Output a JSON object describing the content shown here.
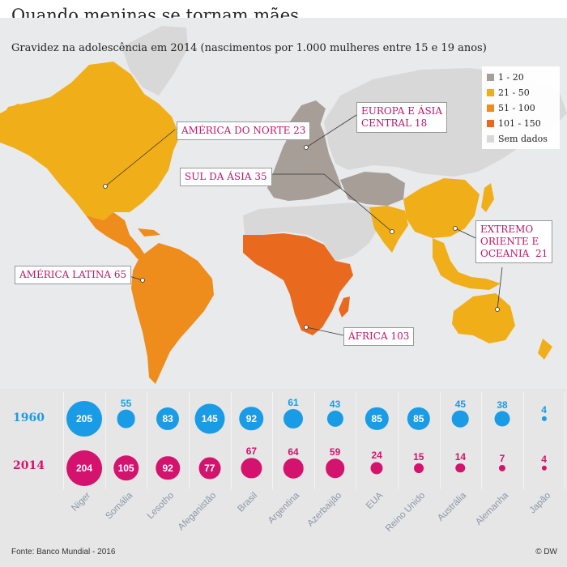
{
  "title": "Quando meninas se tornam mães",
  "subtitle": "Gravidez na adolescência em 2014 (nascimentos por 1.000 mulheres entre 15 e 19 anos)",
  "legend": [
    {
      "label": "1 - 20",
      "color": "#a79e97"
    },
    {
      "label": "21 - 50",
      "color": "#f0ae19"
    },
    {
      "label": "51 - 100",
      "color": "#ee8c1c"
    },
    {
      "label": "101 - 150",
      "color": "#e96a1f"
    },
    {
      "label": "Sem dados",
      "color": "#d8d8d8"
    }
  ],
  "regions": [
    {
      "label": "AMÉRICA DO NORTE 23"
    },
    {
      "label": "EUROPA E ÁSIA\nCENTRAL 18"
    },
    {
      "label": "SUL DA ÁSIA 35"
    },
    {
      "label": "EXTREMO\nORIENTE E\nOCEANIA  21"
    },
    {
      "label": "AMÉRICA LATINA 65"
    },
    {
      "label": "ÁFRICA 103"
    }
  ],
  "colors": {
    "year1960": "#1a9be6",
    "year2014": "#d4136f",
    "ocean": "#e9eaec"
  },
  "chart_data": {
    "type": "bubble",
    "rows": [
      {
        "year": "1960",
        "values": [
          205,
          55,
          83,
          145,
          92,
          61,
          43,
          85,
          85,
          45,
          38,
          4
        ]
      },
      {
        "year": "2014",
        "values": [
          204,
          105,
          92,
          77,
          67,
          64,
          59,
          24,
          15,
          14,
          7,
          4
        ]
      }
    ],
    "countries": [
      "Niger",
      "Somália",
      "Lesotho",
      "Afeganistão",
      "Brasil",
      "Argentina",
      "Azerbaijão",
      "EUA",
      "Reino Unido",
      "Austrália",
      "Alemanha",
      "Japão"
    ]
  },
  "footer": {
    "source": "Fonte: Banco Mundial - 2016",
    "credit": "© DW"
  }
}
